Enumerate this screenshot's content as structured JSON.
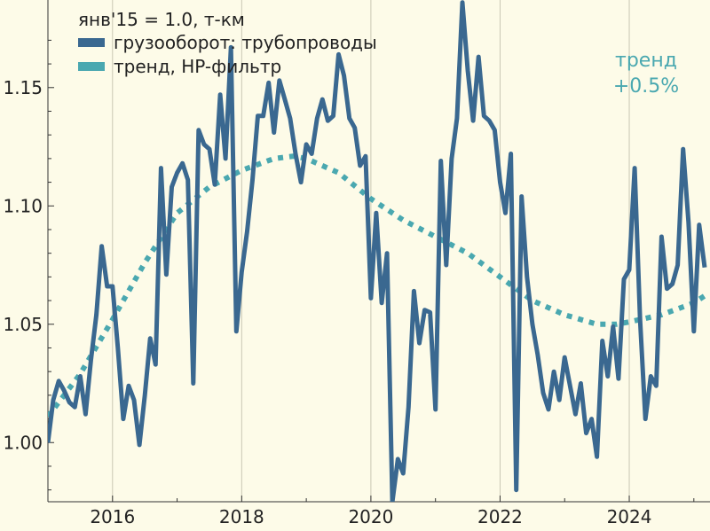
{
  "chart_data": {
    "type": "line",
    "title": "янв'15 = 1.0, т-км",
    "xlabel": "",
    "ylabel": "",
    "xlim": [
      2015.0,
      2025.25
    ],
    "ylim": [
      0.975,
      1.187
    ],
    "yticks": [
      1.0,
      1.05,
      1.1,
      1.15
    ],
    "ytick_labels": [
      "1.00",
      "1.05",
      "1.10",
      "1.15"
    ],
    "xticks": [
      2016,
      2018,
      2020,
      2022,
      2024
    ],
    "xtick_labels": [
      "2016",
      "2018",
      "2020",
      "2022",
      "2024"
    ],
    "grid": "vertical-only",
    "legend": "top-left",
    "annotation": {
      "line1": "тренд",
      "line2": "+0.5%",
      "color": "#4aa8b0"
    },
    "series": [
      {
        "name": "грузооборот: трубопроводы",
        "color": "#3a6890",
        "style": "solid",
        "x": [
          2015.0,
          2015.083,
          2015.167,
          2015.25,
          2015.333,
          2015.417,
          2015.5,
          2015.583,
          2015.667,
          2015.75,
          2015.833,
          2015.917,
          2016.0,
          2016.083,
          2016.167,
          2016.25,
          2016.333,
          2016.417,
          2016.5,
          2016.583,
          2016.667,
          2016.75,
          2016.833,
          2016.917,
          2017.0,
          2017.083,
          2017.167,
          2017.25,
          2017.333,
          2017.417,
          2017.5,
          2017.583,
          2017.667,
          2017.75,
          2017.833,
          2017.917,
          2018.0,
          2018.083,
          2018.167,
          2018.25,
          2018.333,
          2018.417,
          2018.5,
          2018.583,
          2018.667,
          2018.75,
          2018.833,
          2018.917,
          2019.0,
          2019.083,
          2019.167,
          2019.25,
          2019.333,
          2019.417,
          2019.5,
          2019.583,
          2019.667,
          2019.75,
          2019.833,
          2019.917,
          2020.0,
          2020.083,
          2020.167,
          2020.25,
          2020.333,
          2020.417,
          2020.5,
          2020.583,
          2020.667,
          2020.75,
          2020.833,
          2020.917,
          2021.0,
          2021.083,
          2021.167,
          2021.25,
          2021.333,
          2021.417,
          2021.5,
          2021.583,
          2021.667,
          2021.75,
          2021.833,
          2021.917,
          2022.0,
          2022.083,
          2022.167,
          2022.25,
          2022.333,
          2022.417,
          2022.5,
          2022.583,
          2022.667,
          2022.75,
          2022.833,
          2022.917,
          2023.0,
          2023.083,
          2023.167,
          2023.25,
          2023.333,
          2023.417,
          2023.5,
          2023.583,
          2023.667,
          2023.75,
          2023.833,
          2023.917,
          2024.0,
          2024.083,
          2024.167,
          2024.25,
          2024.333,
          2024.417,
          2024.5,
          2024.583,
          2024.667,
          2024.75,
          2024.833,
          2024.917,
          2025.0,
          2025.083,
          2025.167
        ],
        "values": [
          1.0,
          1.018,
          1.026,
          1.022,
          1.017,
          1.015,
          1.028,
          1.012,
          1.035,
          1.054,
          1.083,
          1.066,
          1.066,
          1.04,
          1.01,
          1.024,
          1.018,
          0.999,
          1.02,
          1.044,
          1.033,
          1.116,
          1.071,
          1.108,
          1.114,
          1.118,
          1.111,
          1.025,
          1.132,
          1.126,
          1.124,
          1.109,
          1.147,
          1.12,
          1.167,
          1.047,
          1.072,
          1.089,
          1.111,
          1.138,
          1.138,
          1.152,
          1.131,
          1.153,
          1.145,
          1.137,
          1.122,
          1.11,
          1.126,
          1.122,
          1.137,
          1.145,
          1.136,
          1.138,
          1.164,
          1.155,
          1.137,
          1.133,
          1.117,
          1.121,
          1.061,
          1.097,
          1.059,
          1.08,
          0.975,
          0.993,
          0.987,
          1.015,
          1.064,
          1.042,
          1.056,
          1.055,
          1.014,
          1.119,
          1.075,
          1.12,
          1.137,
          1.186,
          1.157,
          1.136,
          1.163,
          1.138,
          1.136,
          1.132,
          1.11,
          1.097,
          1.122,
          0.98,
          1.104,
          1.07,
          1.05,
          1.037,
          1.021,
          1.014,
          1.03,
          1.018,
          1.036,
          1.024,
          1.012,
          1.025,
          1.004,
          1.01,
          0.994,
          1.043,
          1.028,
          1.049,
          1.027,
          1.069,
          1.073,
          1.116,
          1.052,
          1.01,
          1.028,
          1.024,
          1.087,
          1.065,
          1.067,
          1.075,
          1.124,
          1.093,
          1.047,
          1.092,
          1.074
        ]
      },
      {
        "name": "тренд, HP-фильтр",
        "color": "#4aa8b0",
        "style": "dotted",
        "x": [
          2015.0,
          2015.5,
          2016.0,
          2016.5,
          2017.0,
          2017.5,
          2018.0,
          2018.5,
          2018.8,
          2019.0,
          2019.5,
          2020.0,
          2020.5,
          2021.0,
          2021.5,
          2022.0,
          2022.5,
          2023.0,
          2023.5,
          2023.8,
          2024.0,
          2024.5,
          2025.0,
          2025.167
        ],
        "values": [
          1.011,
          1.029,
          1.052,
          1.076,
          1.097,
          1.108,
          1.115,
          1.12,
          1.121,
          1.12,
          1.114,
          1.103,
          1.094,
          1.087,
          1.08,
          1.07,
          1.06,
          1.054,
          1.05,
          1.05,
          1.051,
          1.054,
          1.059,
          1.062
        ]
      }
    ]
  }
}
